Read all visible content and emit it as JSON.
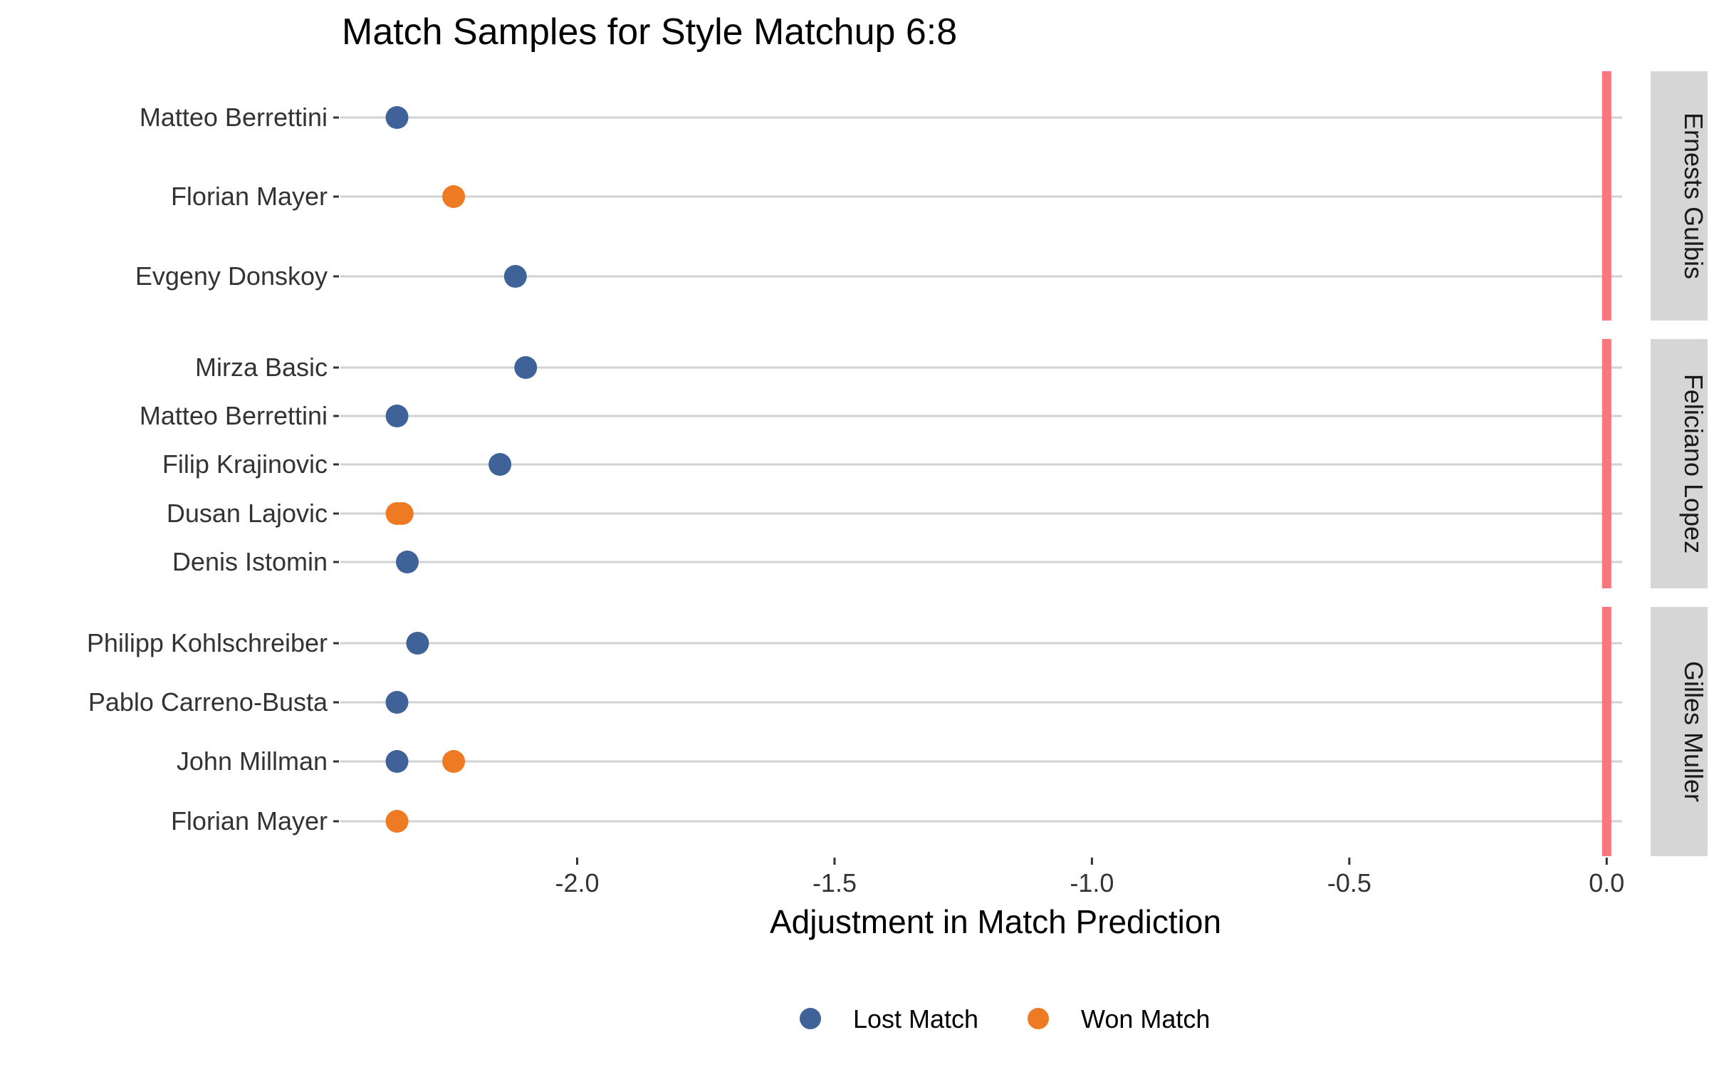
{
  "chart_data": {
    "type": "scatter",
    "title": "Match Samples for Style Matchup 6:8",
    "xlabel": "Adjustment in Match Prediction",
    "xlim": [
      -2.46,
      0.03
    ],
    "xticks": [
      -2.0,
      -1.5,
      -1.0,
      -0.5,
      0.0
    ],
    "xtick_labels": [
      "-2.0",
      "-1.5",
      "-1.0",
      "-0.5",
      "0.0"
    ],
    "reference_line": {
      "x": 0.0,
      "color": "#F8767D"
    },
    "grid": true,
    "legend_position": "bottom",
    "legend": [
      {
        "key": "lost",
        "label": "Lost Match",
        "color": "#3F6399"
      },
      {
        "key": "won",
        "label": "Won Match",
        "color": "#EE7A24"
      }
    ],
    "panels": [
      {
        "facet_label": "Ernests Gulbis",
        "rows": [
          {
            "opponent": "Matteo Berrettini",
            "points": [
              {
                "x": -2.35,
                "result": "lost"
              }
            ]
          },
          {
            "opponent": "Florian Mayer",
            "points": [
              {
                "x": -2.24,
                "result": "won"
              }
            ]
          },
          {
            "opponent": "Evgeny Donskoy",
            "points": [
              {
                "x": -2.12,
                "result": "lost"
              }
            ]
          }
        ]
      },
      {
        "facet_label": "Feliciano Lopez",
        "rows": [
          {
            "opponent": "Mirza Basic",
            "points": [
              {
                "x": -2.1,
                "result": "lost"
              }
            ]
          },
          {
            "opponent": "Matteo Berrettini",
            "points": [
              {
                "x": -2.35,
                "result": "lost"
              }
            ]
          },
          {
            "opponent": "Filip Krajinovic",
            "points": [
              {
                "x": -2.15,
                "result": "lost"
              }
            ]
          },
          {
            "opponent": "Dusan Lajovic",
            "points": [
              {
                "x": -2.35,
                "result": "won"
              },
              {
                "x": -2.34,
                "result": "won"
              }
            ]
          },
          {
            "opponent": "Denis Istomin",
            "points": [
              {
                "x": -2.33,
                "result": "lost"
              }
            ]
          }
        ]
      },
      {
        "facet_label": "Gilles Muller",
        "rows": [
          {
            "opponent": "Philipp Kohlschreiber",
            "points": [
              {
                "x": -2.31,
                "result": "lost"
              }
            ]
          },
          {
            "opponent": "Pablo Carreno-Busta",
            "points": [
              {
                "x": -2.35,
                "result": "lost"
              }
            ]
          },
          {
            "opponent": "John Millman",
            "points": [
              {
                "x": -2.35,
                "result": "lost"
              },
              {
                "x": -2.24,
                "result": "won"
              }
            ]
          },
          {
            "opponent": "Florian Mayer",
            "points": [
              {
                "x": -2.35,
                "result": "won"
              }
            ]
          }
        ]
      }
    ]
  }
}
